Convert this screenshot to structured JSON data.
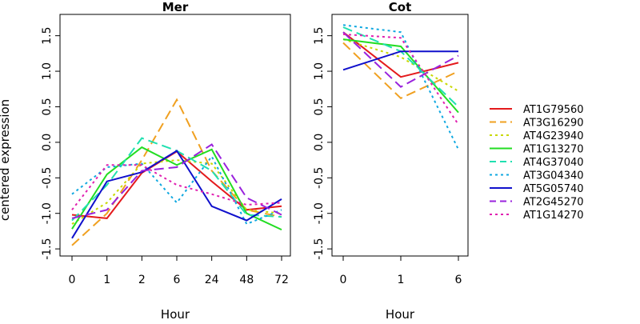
{
  "figure": {
    "ylabel": "centered expression"
  },
  "legend": {
    "position": "right",
    "entries": [
      {
        "name": "AT1G79560",
        "color": "#e41a1c",
        "dash": "solid"
      },
      {
        "name": "AT3G16290",
        "color": "#f0a020",
        "dash": "long-dash"
      },
      {
        "name": "AT4G23940",
        "color": "#c8d800",
        "dash": "dot"
      },
      {
        "name": "AT1G13270",
        "color": "#22dd22",
        "dash": "solid"
      },
      {
        "name": "AT4G37040",
        "color": "#20e0b0",
        "dash": "long-dash"
      },
      {
        "name": "AT3G04340",
        "color": "#10a8e0",
        "dash": "dot"
      },
      {
        "name": "AT5G05740",
        "color": "#1010cc",
        "dash": "solid"
      },
      {
        "name": "AT2G45270",
        "color": "#9922dd",
        "dash": "long-dash"
      },
      {
        "name": "AT1G14270",
        "color": "#e020b0",
        "dash": "dot"
      }
    ]
  },
  "chart_data": [
    {
      "type": "line",
      "title": "Mer",
      "xlabel": "Hour",
      "ylabel": "centered expression",
      "categories": [
        "0",
        "1",
        "2",
        "6",
        "24",
        "48",
        "72"
      ],
      "yticks": [
        -1.5,
        -1.0,
        -0.5,
        0.0,
        0.5,
        1.0,
        1.5
      ],
      "yticklabels": [
        "-1.5",
        "-1.0",
        "-0.5",
        "0.0",
        "0.5",
        "1.0",
        "1.5"
      ],
      "ylim": [
        -1.6,
        1.8
      ],
      "grid": false,
      "series": [
        {
          "name": "AT1G79560",
          "values": [
            -1.02,
            -1.07,
            -0.43,
            -0.13,
            -0.55,
            -0.95,
            -0.9
          ]
        },
        {
          "name": "AT3G16290",
          "values": [
            -1.45,
            -1.0,
            -0.25,
            0.6,
            -0.4,
            -0.95,
            -1.05
          ]
        },
        {
          "name": "AT4G23940",
          "values": [
            -1.15,
            -0.85,
            -0.3,
            -0.25,
            -0.3,
            -0.95,
            -1.0
          ]
        },
        {
          "name": "AT1G13270",
          "values": [
            -1.22,
            -0.45,
            -0.07,
            -0.32,
            -0.1,
            -1.0,
            -1.23
          ]
        },
        {
          "name": "AT4G37040",
          "values": [
            -1.1,
            -0.6,
            0.06,
            -0.12,
            -0.4,
            -1.02,
            -1.05
          ]
        },
        {
          "name": "AT3G04340",
          "values": [
            -0.73,
            -0.35,
            -0.3,
            -0.85,
            -0.2,
            -1.15,
            -0.95
          ]
        },
        {
          "name": "AT5G05740",
          "values": [
            -1.35,
            -0.55,
            -0.42,
            -0.12,
            -0.9,
            -1.1,
            -0.8
          ]
        },
        {
          "name": "AT2G45270",
          "values": [
            -1.07,
            -0.95,
            -0.4,
            -0.35,
            -0.03,
            -0.78,
            -1.02
          ]
        },
        {
          "name": "AT1G14270",
          "values": [
            -0.95,
            -0.32,
            -0.32,
            -0.6,
            -0.73,
            -0.88,
            -0.85
          ]
        }
      ]
    },
    {
      "type": "line",
      "title": "Cot",
      "xlabel": "Hour",
      "ylabel": "",
      "categories": [
        "0",
        "1",
        "6"
      ],
      "yticks": [
        -1.5,
        -1.0,
        -0.5,
        0.0,
        0.5,
        1.0,
        1.5
      ],
      "yticklabels": [
        "-1.5",
        "-1.0",
        "-0.5",
        "0.0",
        "0.5",
        "1.0",
        "1.5"
      ],
      "ylim": [
        -1.6,
        1.8
      ],
      "grid": false,
      "series": [
        {
          "name": "AT1G79560",
          "values": [
            1.55,
            0.92,
            1.12
          ]
        },
        {
          "name": "AT3G16290",
          "values": [
            1.4,
            0.62,
            1.0
          ]
        },
        {
          "name": "AT4G23940",
          "values": [
            1.45,
            1.2,
            0.72
          ]
        },
        {
          "name": "AT1G13270",
          "values": [
            1.45,
            1.35,
            0.42
          ]
        },
        {
          "name": "AT4G37040",
          "values": [
            1.62,
            1.28,
            0.5
          ]
        },
        {
          "name": "AT3G04340",
          "values": [
            1.65,
            1.55,
            -0.1
          ]
        },
        {
          "name": "AT5G05740",
          "values": [
            1.02,
            1.28,
            1.28
          ]
        },
        {
          "name": "AT2G45270",
          "values": [
            1.55,
            0.78,
            1.22
          ]
        },
        {
          "name": "AT1G14270",
          "values": [
            1.52,
            1.47,
            0.25
          ]
        }
      ]
    }
  ]
}
